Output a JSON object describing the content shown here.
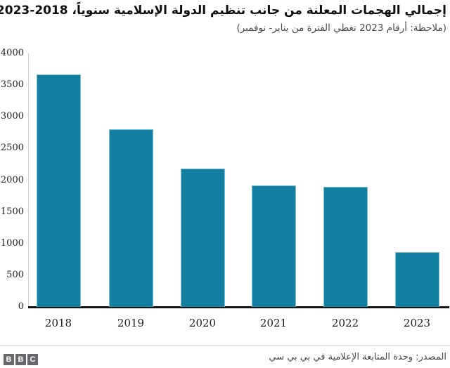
{
  "header": {
    "title": "إجمالي الهجمات المعلنة من جانب تنظيم الدولة الإسلامية سنوياً، 2018‐2023",
    "subtitle": "(ملاحظة: أرقام 2023 تغطي الفترة من يناير- نوفمبر)"
  },
  "chart_data": {
    "type": "bar",
    "categories": [
      "2018",
      "2019",
      "2020",
      "2021",
      "2022",
      "2023"
    ],
    "values": [
      3670,
      2800,
      2180,
      1920,
      1900,
      860
    ],
    "title": "إجمالي الهجمات المعلنة من جانب تنظيم الدولة الإسلامية سنوياً، 2018‐2023",
    "subtitle": "(ملاحظة: أرقام 2023 تغطي الفترة من يناير- نوفمبر)",
    "xlabel": "",
    "ylabel": "",
    "ylim": [
      0,
      4000
    ],
    "ytick_step": 500,
    "yticks": [
      0,
      500,
      1000,
      1500,
      2000,
      2500,
      3000,
      3500,
      4000
    ],
    "grid": false,
    "legend": "none",
    "bar_color": "#1380A1"
  },
  "footer": {
    "source": "المصدر: وحدة المتابعة الإعلامية في بي بي سي",
    "logo_letters": [
      "B",
      "B",
      "C"
    ]
  },
  "colors": {
    "bar": "#1380A1",
    "bar_border": "#7fc0d4",
    "axis": "#141414",
    "y_axis_line": "#cccccc",
    "divider": "#cccccc",
    "logo_block": "#68686c",
    "title_text": "#0d0d0d",
    "subtitle_text": "#4a4a4a",
    "source_text": "#454545"
  }
}
